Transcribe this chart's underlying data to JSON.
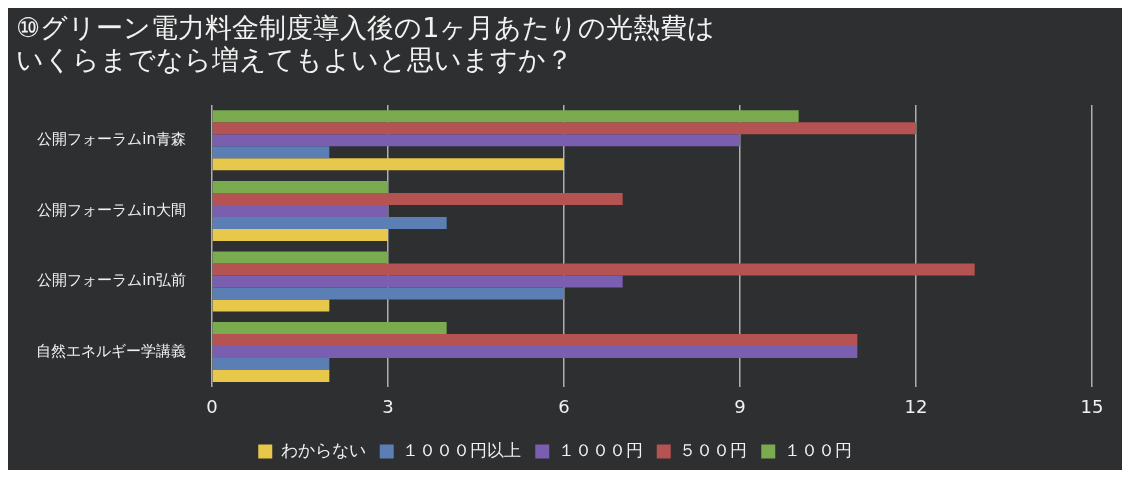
{
  "chart_data": {
    "type": "bar",
    "orientation": "horizontal",
    "title": "⑩グリーン電力料金制度導入後の1ヶ月あたりの光熱費はいくらまでなら増えてもよいと思いますか？",
    "categories": [
      "公開フォーラムin青森",
      "公開フォーラムin大間",
      "公開フォーラムin弘前",
      "自然エネルギー学講義"
    ],
    "series": [
      {
        "name": "１００円",
        "color": "#7aab4f",
        "values": [
          10,
          3,
          3,
          4
        ]
      },
      {
        "name": "５００円",
        "color": "#b55252",
        "values": [
          12,
          7,
          13,
          11
        ]
      },
      {
        "name": "１０００円",
        "color": "#7a5fb0",
        "values": [
          9,
          3,
          7,
          11
        ]
      },
      {
        "name": "１０００円以上",
        "color": "#5b7fb5",
        "values": [
          2,
          4,
          6,
          2
        ]
      },
      {
        "name": "わからない",
        "color": "#e8c84a",
        "values": [
          6,
          3,
          2,
          2
        ]
      }
    ],
    "xlim": [
      0,
      15
    ],
    "xticks": [
      0,
      3,
      6,
      9,
      12,
      15
    ],
    "grid": "x",
    "legend": "bottom"
  }
}
